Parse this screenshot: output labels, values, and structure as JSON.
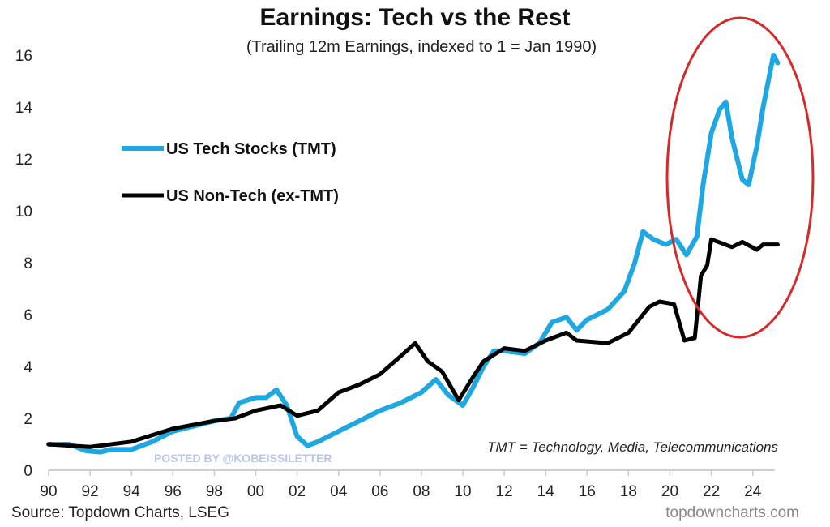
{
  "chart_data": {
    "type": "line",
    "title": "Earnings: Tech vs the Rest",
    "subtitle": "(Trailing 12m Earnings, indexed to 1 = Jan 1990)",
    "xlabel": "",
    "ylabel": "",
    "xlim": [
      1990,
      2025.3
    ],
    "ylim": [
      0,
      16
    ],
    "grid": false,
    "legend_position": "upper-left",
    "x_ticks": [
      1990,
      1992,
      1994,
      1996,
      1998,
      2000,
      2002,
      2004,
      2006,
      2008,
      2010,
      2012,
      2014,
      2016,
      2018,
      2020,
      2022,
      2024
    ],
    "x_tick_labels": [
      "90",
      "92",
      "94",
      "96",
      "98",
      "00",
      "02",
      "04",
      "06",
      "08",
      "10",
      "12",
      "14",
      "16",
      "18",
      "20",
      "22",
      "24"
    ],
    "y_ticks": [
      0,
      2,
      4,
      6,
      8,
      10,
      12,
      14,
      16
    ],
    "y_tick_labels": [
      "0",
      "2",
      "4",
      "6",
      "8",
      "10",
      "12",
      "14",
      "16"
    ],
    "series": [
      {
        "name": "US Tech Stocks (TMT)",
        "color": "#1ea7e1",
        "x": [
          1990,
          1991,
          1991.8,
          1992.5,
          1993,
          1994,
          1995,
          1996,
          1997,
          1998,
          1998.8,
          1999.2,
          2000,
          2000.5,
          2001,
          2001.5,
          2002,
          2002.5,
          2003,
          2004,
          2005,
          2006,
          2007,
          2008,
          2008.7,
          2009.3,
          2010,
          2010.5,
          2011,
          2011.5,
          2012,
          2013,
          2013.7,
          2014.3,
          2015,
          2015.5,
          2016,
          2017,
          2017.8,
          2018.3,
          2018.7,
          2019.2,
          2019.8,
          2020.3,
          2020.8,
          2021.3,
          2021.6,
          2022,
          2022.4,
          2022.7,
          2023,
          2023.5,
          2023.8,
          2024.2,
          2024.5,
          2024.8,
          2025.0,
          2025.2
        ],
        "values": [
          1.0,
          1.0,
          0.75,
          0.7,
          0.8,
          0.8,
          1.1,
          1.5,
          1.7,
          1.9,
          2.0,
          2.6,
          2.8,
          2.8,
          3.1,
          2.5,
          1.3,
          0.95,
          1.1,
          1.5,
          1.9,
          2.3,
          2.6,
          3.0,
          3.5,
          2.9,
          2.5,
          3.2,
          4.0,
          4.6,
          4.6,
          4.5,
          4.9,
          5.7,
          5.9,
          5.4,
          5.8,
          6.2,
          6.9,
          8.0,
          9.2,
          8.9,
          8.7,
          8.9,
          8.3,
          9.0,
          11.0,
          13.0,
          13.9,
          14.2,
          12.8,
          11.2,
          11.0,
          12.5,
          14.0,
          15.2,
          16.0,
          15.7
        ]
      },
      {
        "name": "US Non-Tech (ex-TMT)",
        "color": "#000000",
        "x": [
          1990,
          1992,
          1994,
          1996,
          1998,
          1999,
          2000,
          2001.2,
          2002,
          2003,
          2004,
          2005,
          2006,
          2007,
          2007.7,
          2008.3,
          2009,
          2009.8,
          2010.5,
          2011,
          2012,
          2013,
          2014,
          2015,
          2015.5,
          2017,
          2018,
          2019,
          2019.5,
          2020.2,
          2020.7,
          2021.2,
          2021.5,
          2021.8,
          2022,
          2023,
          2023.5,
          2024.2,
          2024.5,
          2025.2
        ],
        "values": [
          1.0,
          0.9,
          1.1,
          1.6,
          1.9,
          2.0,
          2.3,
          2.5,
          2.1,
          2.3,
          3.0,
          3.3,
          3.7,
          4.4,
          4.9,
          4.2,
          3.8,
          2.7,
          3.6,
          4.2,
          4.7,
          4.6,
          5.0,
          5.3,
          5.0,
          4.9,
          5.3,
          6.3,
          6.5,
          6.4,
          5.0,
          5.1,
          7.5,
          7.9,
          8.9,
          8.6,
          8.8,
          8.5,
          8.7,
          8.7
        ]
      }
    ],
    "annotations": {
      "note": "TMT = Technology, Media, Telecommunications",
      "source": "Source: Topdown Charts, LSEG",
      "brand": "topdowncharts.com",
      "watermark": "POSTED BY @KOBEISSILETTER",
      "highlight_ellipse": {
        "color": "#d42a2a",
        "around": "2021–2025 period"
      }
    }
  }
}
